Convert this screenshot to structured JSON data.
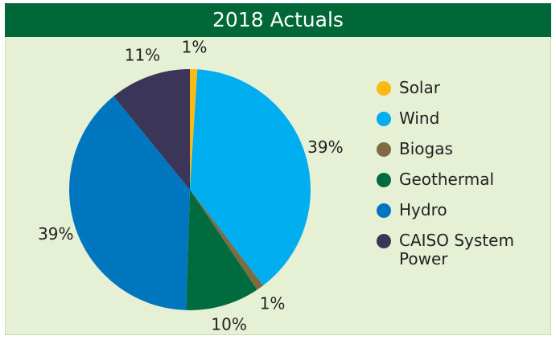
{
  "chart_data": {
    "type": "pie",
    "title": "2018 Actuals",
    "categories": [
      "Solar",
      "Wind",
      "Biogas",
      "Geothermal",
      "Hydro",
      "CAISO System Power"
    ],
    "values": [
      1,
      39,
      1,
      10,
      39,
      11
    ],
    "value_labels": [
      "1%",
      "39%",
      "1%",
      "10%",
      "39%",
      "11%"
    ],
    "colors": [
      "#fdb913",
      "#00aeef",
      "#7d6b43",
      "#006b3f",
      "#0076be",
      "#3b3558"
    ],
    "legend": "right"
  }
}
